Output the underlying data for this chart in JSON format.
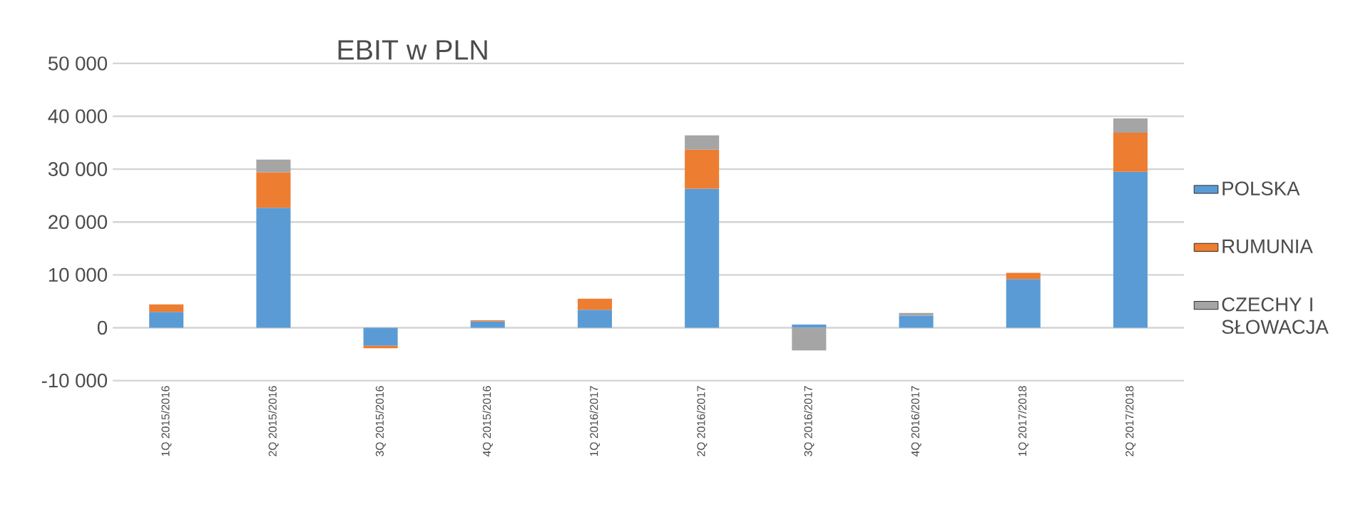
{
  "chart_data": {
    "type": "bar",
    "title": "EBIT w PLN",
    "stacked": true,
    "categories": [
      "1Q 2015/2016",
      "2Q 2015/2016",
      "3Q 2015/2016",
      "4Q 2015/2016",
      "1Q 2016/2017",
      "2Q 2016/2017",
      "3Q 2016/2017",
      "4Q 2016/2017",
      "1Q 2017/2018",
      "2Q 2017/2018"
    ],
    "series": [
      {
        "name": "POLSKA",
        "color": "#5b9bd5",
        "values": [
          3000,
          22700,
          -3400,
          1200,
          3400,
          26300,
          600,
          2300,
          9200,
          29500
        ]
      },
      {
        "name": "RUMUNIA",
        "color": "#ed7d31",
        "values": [
          1400,
          6700,
          -500,
          200,
          2100,
          7400,
          0,
          0,
          1200,
          7400
        ]
      },
      {
        "name": "CZECHY I SŁOWACJA",
        "color": "#a5a5a5",
        "values": [
          null,
          2400,
          null,
          null,
          null,
          2700,
          -4300,
          500,
          0,
          2700
        ]
      }
    ],
    "ylim": [
      -10000,
      50000
    ],
    "yticks": [
      {
        "value": -10000,
        "label": "-10 000"
      },
      {
        "value": 0,
        "label": "0"
      },
      {
        "value": 10000,
        "label": "10 000"
      },
      {
        "value": 20000,
        "label": "20 000"
      },
      {
        "value": 30000,
        "label": "30 000"
      },
      {
        "value": 40000,
        "label": "40 000"
      },
      {
        "value": 50000,
        "label": "50 000"
      }
    ],
    "grid": "y",
    "legend": "right"
  }
}
